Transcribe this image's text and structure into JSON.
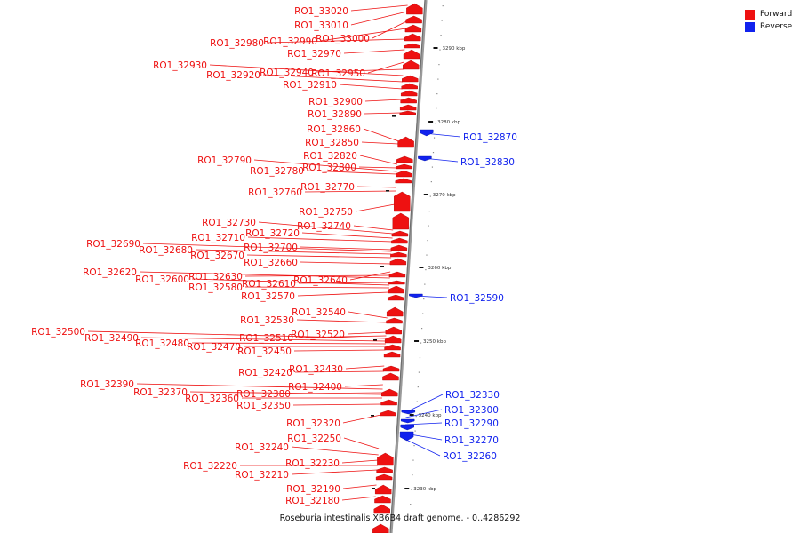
{
  "legend": {
    "forward_label": "Forward",
    "reverse_label": "Reverse",
    "forward_color": "#ee1111",
    "reverse_color": "#1122ee"
  },
  "caption": "Roseburia intestinalis XB6B4 draft genome. - 0..4286292",
  "axis_unit": "kbp",
  "ticks_kbp": [
    3290,
    3280,
    3270,
    3260,
    3250,
    3240,
    3230
  ],
  "forward_genes": [
    "RO1_33020",
    "RO1_33010",
    "RO1_33000",
    "RO1_32990",
    "RO1_32980",
    "RO1_32970",
    "RO1_32950",
    "RO1_32940",
    "RO1_32930",
    "RO1_32920",
    "RO1_32910",
    "RO1_32900",
    "RO1_32890",
    "RO1_32860",
    "RO1_32850",
    "RO1_32820",
    "RO1_32800",
    "RO1_32790",
    "RO1_32780",
    "RO1_32770",
    "RO1_32760",
    "RO1_32750",
    "RO1_32740",
    "RO1_32730",
    "RO1_32720",
    "RO1_32710",
    "RO1_32700",
    "RO1_32690",
    "RO1_32680",
    "RO1_32670",
    "RO1_32660",
    "RO1_32640",
    "RO1_32630",
    "RO1_32620",
    "RO1_32610",
    "RO1_32600",
    "RO1_32580",
    "RO1_32570",
    "RO1_32540",
    "RO1_32530",
    "RO1_32520",
    "RO1_32510",
    "RO1_32500",
    "RO1_32490",
    "RO1_32480",
    "RO1_32470",
    "RO1_32450",
    "RO1_32430",
    "RO1_32420",
    "RO1_32400",
    "RO1_32390",
    "RO1_32380",
    "RO1_32370",
    "RO1_32360",
    "RO1_32350",
    "RO1_32320",
    "RO1_32250",
    "RO1_32240",
    "RO1_32230",
    "RO1_32220",
    "RO1_32210",
    "RO1_32190",
    "RO1_32180"
  ],
  "reverse_genes": [
    "RO1_32870",
    "RO1_32830",
    "RO1_32590",
    "RO1_32330",
    "RO1_32300",
    "RO1_32290",
    "RO1_32270",
    "RO1_32260"
  ]
}
